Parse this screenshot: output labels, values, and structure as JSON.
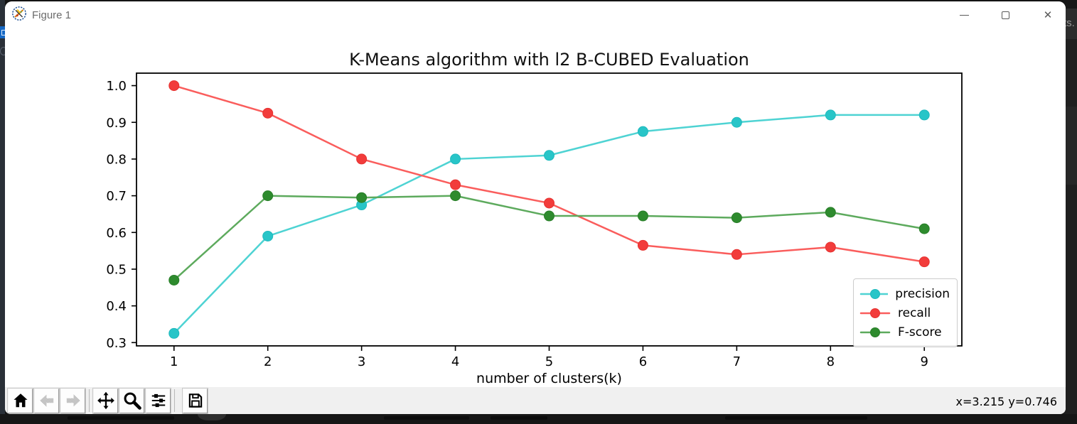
{
  "window": {
    "title": "Figure 1"
  },
  "desktop": {
    "right_edge_text": "ts."
  },
  "toolbar": {
    "buttons": [
      {
        "icon": "home-icon"
      },
      {
        "icon": "back-icon"
      },
      {
        "icon": "forward-icon"
      },
      {
        "icon": "pan-icon"
      },
      {
        "icon": "zoom-icon"
      },
      {
        "icon": "configure-subplots-icon"
      },
      {
        "icon": "save-icon"
      }
    ],
    "coords": "x=3.215 y=0.746"
  },
  "chart_data": {
    "type": "line",
    "title": "K-Means algorithm with l2 B-CUBED Evaluation",
    "xlabel": "number of clusters(k)",
    "ylabel": "",
    "x": [
      1,
      2,
      3,
      4,
      5,
      6,
      7,
      8,
      9
    ],
    "xlim": [
      0.6,
      9.4
    ],
    "ylim": [
      0.291,
      1.034
    ],
    "yticks": [
      0.3,
      0.4,
      0.5,
      0.6,
      0.7,
      0.8,
      0.9,
      1.0
    ],
    "grid": false,
    "legend_position": "lower right",
    "series": [
      {
        "name": "precision",
        "color": "#4ed3d3",
        "marker_color": "#28c5c8",
        "marker_edge": "#1fb9bd",
        "values": [
          0.325,
          0.59,
          0.675,
          0.8,
          0.81,
          0.875,
          0.9,
          0.92,
          0.92
        ]
      },
      {
        "name": "recall",
        "color": "#fa5d5c",
        "marker_color": "#f23c3b",
        "marker_edge": "#e63230",
        "values": [
          1.0,
          0.925,
          0.8,
          0.73,
          0.68,
          0.565,
          0.54,
          0.56,
          0.52
        ]
      },
      {
        "name": "F-score",
        "color": "#5daa5d",
        "marker_color": "#2e8b2e",
        "marker_edge": "#287e28",
        "values": [
          0.47,
          0.7,
          0.695,
          0.7,
          0.645,
          0.645,
          0.64,
          0.655,
          0.61
        ]
      }
    ]
  }
}
